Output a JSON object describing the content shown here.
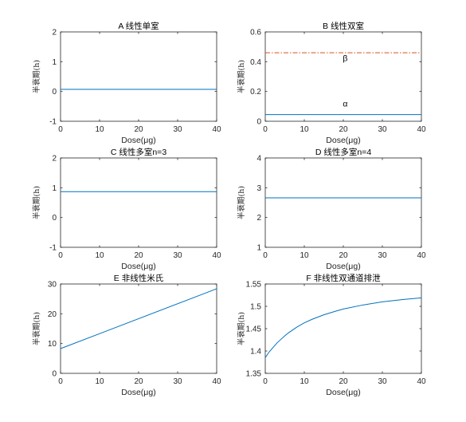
{
  "chart_data": [
    {
      "type": "line",
      "title": "A 线性单室",
      "xlabel": "Dose(μg)",
      "ylabel": "半衰期(h)",
      "xlim": [
        0,
        40
      ],
      "ylim": [
        -1,
        2
      ],
      "xticks": [
        0,
        10,
        20,
        30,
        40
      ],
      "yticks": [
        -1,
        0,
        1,
        2
      ],
      "grid": false,
      "series": [
        {
          "x": [
            0,
            40
          ],
          "y": [
            0.07,
            0.07
          ],
          "color": "#0072BD",
          "style": "solid"
        }
      ]
    },
    {
      "type": "line",
      "title": "B 线性双室",
      "xlabel": "Dose(μg)",
      "ylabel": "半衰期(h)",
      "xlim": [
        0,
        40
      ],
      "ylim": [
        0,
        0.6
      ],
      "xticks": [
        0,
        10,
        20,
        30,
        40
      ],
      "yticks": [
        0,
        0.2,
        0.4,
        0.6
      ],
      "grid": false,
      "series": [
        {
          "name": "α",
          "x": [
            0,
            40
          ],
          "y": [
            0.045,
            0.045
          ],
          "color": "#0072BD",
          "style": "solid"
        },
        {
          "name": "β",
          "x": [
            0,
            40
          ],
          "y": [
            0.46,
            0.46
          ],
          "color": "#D95319",
          "style": "dashdot"
        }
      ],
      "annotations": [
        {
          "text": "β",
          "x": 20.5,
          "y": 0.405
        },
        {
          "text": "α",
          "x": 20.5,
          "y": 0.1
        }
      ]
    },
    {
      "type": "line",
      "title": "C 线性多室n=3",
      "xlabel": "Dose(μg)",
      "ylabel": "半衰期(h)",
      "xlim": [
        0,
        40
      ],
      "ylim": [
        -1,
        2
      ],
      "xticks": [
        0,
        10,
        20,
        30,
        40
      ],
      "yticks": [
        -1,
        0,
        1,
        2
      ],
      "grid": false,
      "series": [
        {
          "x": [
            0,
            40
          ],
          "y": [
            0.87,
            0.87
          ],
          "color": "#0072BD",
          "style": "solid"
        }
      ]
    },
    {
      "type": "line",
      "title": "D 线性多室n=4",
      "xlabel": "Dose(μg)",
      "ylabel": "半衰期(h)",
      "xlim": [
        0,
        40
      ],
      "ylim": [
        1,
        4
      ],
      "xticks": [
        0,
        10,
        20,
        30,
        40
      ],
      "yticks": [
        1,
        2,
        3,
        4
      ],
      "grid": false,
      "series": [
        {
          "x": [
            0,
            40
          ],
          "y": [
            2.66,
            2.66
          ],
          "color": "#0072BD",
          "style": "solid"
        }
      ]
    },
    {
      "type": "line",
      "title": "E 非线性米氏",
      "xlabel": "Dose(μg)",
      "ylabel": "半衰期(h)",
      "xlim": [
        0,
        40
      ],
      "ylim": [
        0,
        30
      ],
      "xticks": [
        0,
        10,
        20,
        30,
        40
      ],
      "yticks": [
        0,
        10,
        20,
        30
      ],
      "grid": false,
      "series": [
        {
          "x": [
            0,
            40
          ],
          "y": [
            8.3,
            28.4
          ],
          "color": "#0072BD",
          "style": "solid"
        }
      ]
    },
    {
      "type": "line",
      "title": "F 非线性双通道排泄",
      "xlabel": "Dose(μg)",
      "ylabel": "半衰期(h)",
      "xlim": [
        0,
        40
      ],
      "ylim": [
        1.35,
        1.55
      ],
      "xticks": [
        0,
        10,
        20,
        30,
        40
      ],
      "yticks": [
        1.35,
        1.4,
        1.45,
        1.5,
        1.55
      ],
      "grid": false,
      "series": [
        {
          "x": [
            0,
            1,
            2,
            3,
            4,
            5,
            6,
            8,
            10,
            12,
            15,
            18,
            20,
            25,
            30,
            35,
            40
          ],
          "y": [
            1.385,
            1.398,
            1.408,
            1.418,
            1.426,
            1.434,
            1.441,
            1.453,
            1.463,
            1.471,
            1.481,
            1.489,
            1.494,
            1.503,
            1.51,
            1.515,
            1.519
          ],
          "color": "#0072BD",
          "style": "solid"
        }
      ]
    }
  ]
}
